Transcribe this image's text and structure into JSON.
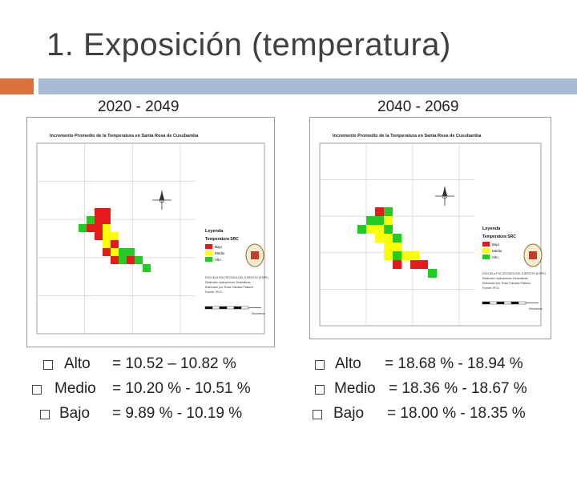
{
  "title": "1. Exposición (temperatura)",
  "colors": {
    "accent_orange": "#d9733b",
    "accent_blue": "#a7bcd3",
    "bajo": "#e41a1c",
    "medio": "#ffff00",
    "alto": "#22cc22"
  },
  "left": {
    "period": "2020 - 2049",
    "map": {
      "title": "Incremento Promedio de la Temperatura en Santa Rosa de Cusubamba",
      "legend_title": "Leyenda",
      "legend_subtitle": "Temperatura SRC",
      "legend_items": [
        "Bajo",
        "Medio",
        "Alto"
      ],
      "credits": [
        "ESCUELA POLITECNICA DEL EJERCITO (ESPE)",
        "Realizado: Aplicaciones Geomaticas",
        "Elaborado por: Rosa Chicaiza Pallares",
        "Fuente: IPCC"
      ],
      "scale_label": "Kilometros",
      "grid": [
        [
          0,
          0,
          0,
          1,
          1,
          0,
          0,
          0,
          0,
          0
        ],
        [
          0,
          0,
          3,
          1,
          1,
          0,
          0,
          0,
          0,
          0
        ],
        [
          0,
          3,
          1,
          1,
          2,
          0,
          0,
          0,
          0,
          0
        ],
        [
          0,
          0,
          0,
          1,
          2,
          2,
          0,
          0,
          0,
          0
        ],
        [
          0,
          0,
          0,
          0,
          2,
          1,
          0,
          0,
          0,
          0
        ],
        [
          0,
          0,
          0,
          0,
          1,
          2,
          3,
          3,
          0,
          0
        ],
        [
          0,
          0,
          0,
          0,
          0,
          1,
          3,
          1,
          3,
          0
        ],
        [
          0,
          0,
          0,
          0,
          0,
          0,
          0,
          0,
          0,
          3
        ]
      ]
    },
    "bullets": [
      {
        "label": "Alto",
        "value": "= 10.52 – 10.82 %"
      },
      {
        "label": "Medio",
        "value": "= 10.20 % - 10.51 %"
      },
      {
        "label": "Bajo",
        "value": "= 9.89 % - 10.19 %"
      }
    ]
  },
  "right": {
    "period": "2040 - 2069",
    "map": {
      "title": "Incremento Promedio de la Temperatura en Santa Rosa de Cusubamba",
      "legend_title": "Leyenda",
      "legend_subtitle": "Temperatura SRC",
      "legend_items": [
        "Bajo",
        "Medio",
        "Alto"
      ],
      "credits": [
        "ESCUELA POLITECNICA DEL EJERCITO (ESPE)",
        "Realizado: Aplicaciones Geomaticas",
        "Elaborado por: Rosa Chicaiza Pallares",
        "Fuente: IPCC"
      ],
      "scale_label": "Kilometros",
      "grid": [
        [
          0,
          0,
          0,
          1,
          3,
          0,
          0,
          0,
          0,
          0
        ],
        [
          0,
          0,
          3,
          3,
          2,
          0,
          0,
          0,
          0,
          0
        ],
        [
          0,
          3,
          2,
          2,
          3,
          0,
          0,
          0,
          0,
          0
        ],
        [
          0,
          0,
          0,
          2,
          2,
          3,
          0,
          0,
          0,
          0
        ],
        [
          0,
          0,
          0,
          0,
          2,
          2,
          0,
          0,
          0,
          0
        ],
        [
          0,
          0,
          0,
          0,
          2,
          3,
          2,
          2,
          0,
          0
        ],
        [
          0,
          0,
          0,
          0,
          0,
          1,
          0,
          1,
          1,
          0
        ],
        [
          0,
          0,
          0,
          0,
          0,
          0,
          0,
          0,
          0,
          3
        ]
      ]
    },
    "bullets": [
      {
        "label": "Alto",
        "value": "= 18.68 % - 18.94 %"
      },
      {
        "label": "Medio",
        "value": "= 18.36 % - 18.67 %"
      },
      {
        "label": "Bajo",
        "value": "= 18.00 % - 18.35 %"
      }
    ]
  }
}
